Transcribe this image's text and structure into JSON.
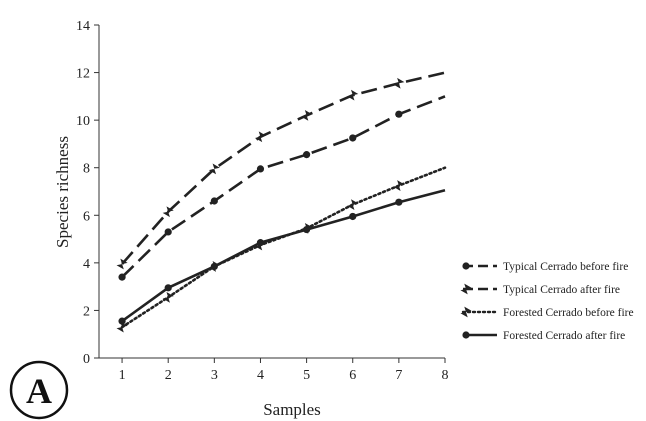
{
  "panel_label": "A",
  "chart_data": {
    "type": "line",
    "title": "",
    "xlabel": "Samples",
    "ylabel": "Species richness",
    "x": [
      1,
      2,
      3,
      4,
      5,
      6,
      7,
      8
    ],
    "xticks": [
      "1",
      "2",
      "3",
      "4",
      "5",
      "6",
      "7",
      "8"
    ],
    "yticks": [
      "0",
      "2",
      "4",
      "6",
      "8",
      "10",
      "12",
      "14"
    ],
    "xlim": [
      0.5,
      8
    ],
    "ylim": [
      0,
      14
    ],
    "grid": false,
    "legend_position": "right",
    "series": [
      {
        "name": "Typical Cerrado before fire",
        "values": [
          3.4,
          5.3,
          6.6,
          7.95,
          8.55,
          9.25,
          10.25,
          11.0
        ],
        "line_style": "long-dash",
        "marker": "circle",
        "color": "#222222"
      },
      {
        "name": "Typical Cerrado after fire",
        "values": [
          3.95,
          6.15,
          7.95,
          9.3,
          10.2,
          11.05,
          11.55,
          12.0
        ],
        "line_style": "long-dash",
        "marker": "bowtie",
        "color": "#222222"
      },
      {
        "name": "Forested Cerrado before fire",
        "values": [
          1.3,
          2.55,
          3.85,
          4.75,
          5.45,
          6.45,
          7.25,
          8.0
        ],
        "line_style": "dotted",
        "marker": "bowtie",
        "color": "#222222"
      },
      {
        "name": "Forested Cerrado after fire",
        "values": [
          1.55,
          2.95,
          3.85,
          4.85,
          5.4,
          5.95,
          6.55,
          7.05
        ],
        "line_style": "solid",
        "marker": "circle",
        "color": "#222222"
      }
    ]
  }
}
